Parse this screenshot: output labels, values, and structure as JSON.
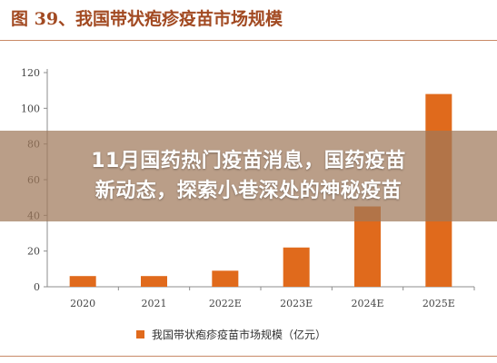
{
  "figure_title": "图 39、我国带状疱疹疫苗市场规模",
  "overlay": {
    "line1": "11月国药热门疫苗消息，国药疫苗",
    "line2": "新动态，探索小巷深处的神秘疫苗"
  },
  "colors": {
    "bar": "#e06a1c",
    "title": "#a24a22",
    "rule": "#c98a67",
    "axis": "#8c8c8c"
  },
  "chart_data": {
    "type": "bar",
    "categories": [
      "2020",
      "2021",
      "2022E",
      "2023E",
      "2024E",
      "2025E"
    ],
    "series": [
      {
        "name": "我国带状疱疹疫苗市场规模（亿元）",
        "values": [
          6,
          6,
          9,
          22,
          45,
          108
        ]
      }
    ],
    "yticks": [
      0,
      20,
      40,
      60,
      80,
      100,
      120
    ],
    "ylim": [
      0,
      120
    ],
    "title": "图 39、我国带状疱疹疫苗市场规模",
    "xlabel": "",
    "ylabel": "",
    "grid": false,
    "legend": "bottom"
  }
}
